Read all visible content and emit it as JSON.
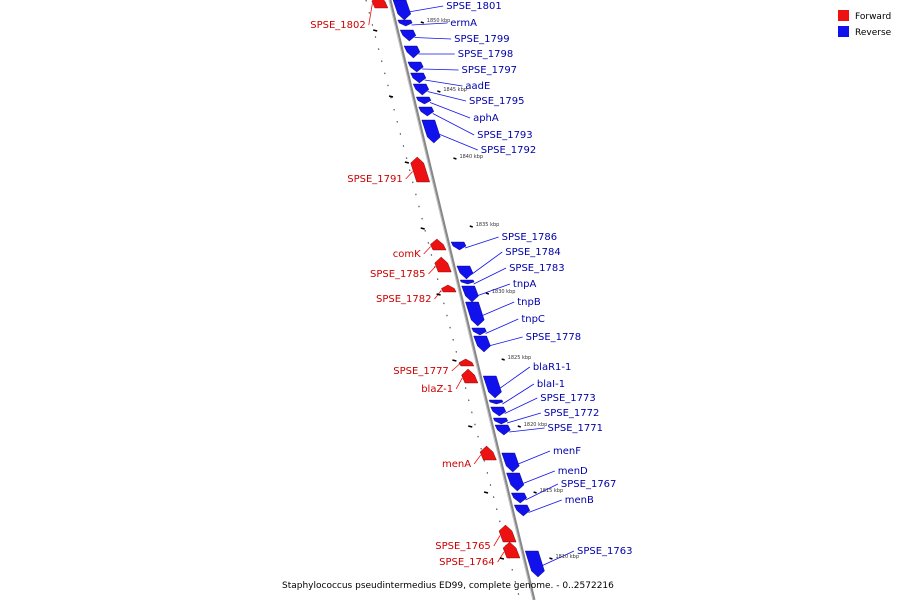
{
  "caption": "Staphylococcus pseudintermedius ED99, complete genome. - 0..2572216",
  "legend": [
    {
      "label": "Forward",
      "color": "#ee1111"
    },
    {
      "label": "Reverse",
      "color": "#1111ee"
    }
  ],
  "colors": {
    "forward": "#ee1111",
    "reverse": "#1111ee",
    "forward_text": "#cc0000",
    "reverse_text": "#0000aa",
    "axis": "#777777"
  },
  "ticks": [
    "1850 kbp",
    "1845 kbp",
    "1840 kbp",
    "1835 kbp",
    "1830 kbp",
    "1825 kbp",
    "1820 kbp",
    "1815 kbp",
    "1810 kbp"
  ],
  "forward_genes": [
    "SPSE_1802",
    "SPSE_1791",
    "comK",
    "SPSE_1785",
    "SPSE_1782",
    "SPSE_1777",
    "blaZ-1",
    "menA",
    "SPSE_1765",
    "SPSE_1764"
  ],
  "reverse_genes": [
    "SPSE_1801",
    "ermA",
    "SPSE_1799",
    "SPSE_1798",
    "SPSE_1797",
    "aadE",
    "SPSE_1795",
    "aphA",
    "SPSE_1793",
    "SPSE_1792",
    "SPSE_1786",
    "SPSE_1784",
    "SPSE_1783",
    "tnpA",
    "tnpB",
    "tnpC",
    "SPSE_1778",
    "blaR1-1",
    "blaI-1",
    "SPSE_1773",
    "SPSE_1772",
    "SPSE_1771",
    "menF",
    "menD",
    "SPSE_1767",
    "menB",
    "SPSE_1763"
  ]
}
